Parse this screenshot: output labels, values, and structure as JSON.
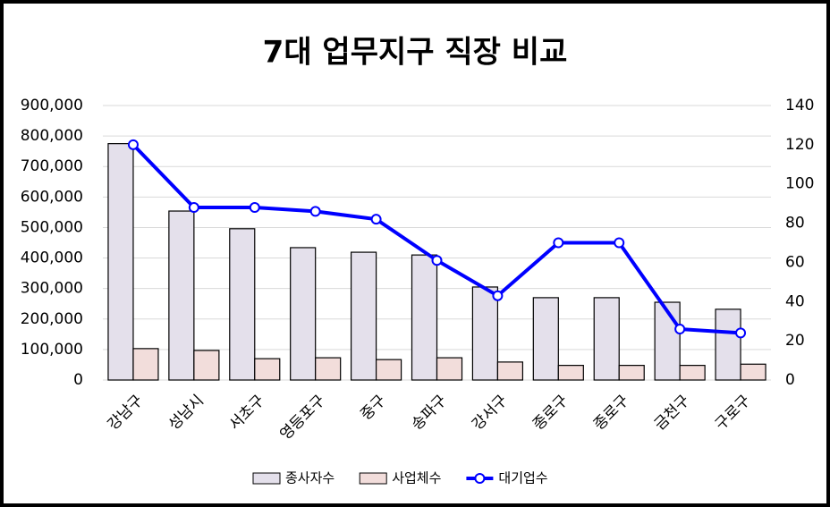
{
  "chart_data": {
    "type": "bar",
    "title": "7대 업무지구 직장 비교",
    "categories": [
      "강남구",
      "성남시",
      "서초구",
      "영등포구",
      "중구",
      "송파구",
      "강서구",
      "종로구",
      "종로구",
      "금천구",
      "구로구"
    ],
    "series": [
      {
        "name": "종사자수",
        "color": "#e4e0eb",
        "values": [
          775000,
          554000,
          496000,
          434000,
          419000,
          410000,
          305000,
          270000,
          270000,
          255000,
          232000
        ]
      },
      {
        "name": "사업체수",
        "color": "#f2dddb",
        "values": [
          103000,
          97000,
          70000,
          73000,
          67000,
          73000,
          59000,
          48000,
          48000,
          48000,
          52000
        ]
      },
      {
        "name": "대기업수",
        "color": "#0000ff",
        "type": "line",
        "axis": "y2",
        "values": [
          120,
          88,
          88,
          86,
          82,
          61,
          43,
          70,
          70,
          26,
          24
        ]
      }
    ],
    "ylim": [
      0,
      900000
    ],
    "yticks": [
      0,
      {
        "value": 100000,
        "label": "100,000"
      },
      {
        "value": 200000,
        "label": "200,000"
      },
      {
        "value": 300000,
        "label": "300,000"
      },
      {
        "value": 400000,
        "label": "400,000"
      },
      {
        "value": 500000,
        "label": "500,000"
      },
      {
        "value": 600000,
        "label": "600,000"
      },
      {
        "value": 700000,
        "label": "700,000"
      },
      {
        "value": 800000,
        "label": "800,000"
      },
      {
        "value": 900000,
        "label": "900,000"
      }
    ],
    "y2lim": [
      0,
      140
    ],
    "y2ticks": [
      0,
      20,
      40,
      60,
      80,
      100,
      120,
      140
    ],
    "grid": true,
    "legend": "bottom"
  }
}
